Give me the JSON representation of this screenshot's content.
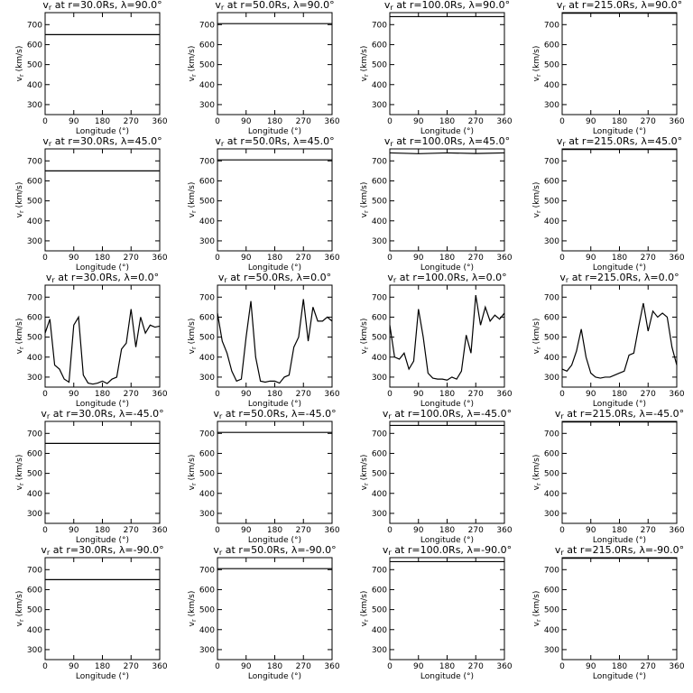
{
  "chart_data": [
    {
      "type": "line",
      "title": "vr at r=30.0Rs,  λ=90.0°",
      "xlabel": "Longitude (°)",
      "ylabel": "vr (km/s)",
      "x": [
        0,
        360
      ],
      "series": [
        {
          "color": "#000000",
          "values": [
            650,
            650
          ]
        }
      ],
      "xlim": [
        0,
        360
      ],
      "ylim": [
        250,
        760
      ],
      "xticks": [
        0,
        90,
        180,
        270,
        360
      ],
      "yticks": [
        300,
        400,
        500,
        600,
        700
      ]
    },
    {
      "type": "line",
      "title": "vr at r=50.0Rs,  λ=90.0°",
      "xlabel": "Longitude (°)",
      "ylabel": "vr (km/s)",
      "x": [
        0,
        360
      ],
      "series": [
        {
          "color": "#000000",
          "values": [
            705,
            705
          ]
        }
      ],
      "xlim": [
        0,
        360
      ],
      "ylim": [
        250,
        760
      ],
      "xticks": [
        0,
        90,
        180,
        270,
        360
      ],
      "yticks": [
        300,
        400,
        500,
        600,
        700
      ]
    },
    {
      "type": "line",
      "title": "vr at r=100.0Rs,  λ=90.0°",
      "xlabel": "Longitude (°)",
      "ylabel": "vr (km/s)",
      "x": [
        0,
        360
      ],
      "series": [
        {
          "color": "#000000",
          "values": [
            740,
            740
          ]
        }
      ],
      "xlim": [
        0,
        360
      ],
      "ylim": [
        250,
        760
      ],
      "xticks": [
        0,
        90,
        180,
        270,
        360
      ],
      "yticks": [
        300,
        400,
        500,
        600,
        700
      ]
    },
    {
      "type": "line",
      "title": "vr at r=215.0Rs,  λ=90.0°",
      "xlabel": "Longitude (°)",
      "ylabel": "vr (km/s)",
      "x": [
        0,
        360
      ],
      "series": [
        {
          "color": "#000000",
          "values": [
            757,
            757
          ]
        }
      ],
      "xlim": [
        0,
        360
      ],
      "ylim": [
        250,
        760
      ],
      "xticks": [
        0,
        90,
        180,
        270,
        360
      ],
      "yticks": [
        300,
        400,
        500,
        600,
        700
      ]
    },
    {
      "type": "line",
      "title": "vr at r=30.0Rs,  λ=45.0°",
      "xlabel": "Longitude (°)",
      "ylabel": "vr (km/s)",
      "x": [
        0,
        360
      ],
      "series": [
        {
          "color": "#000000",
          "values": [
            650,
            650
          ]
        }
      ],
      "xlim": [
        0,
        360
      ],
      "ylim": [
        250,
        760
      ],
      "xticks": [
        0,
        90,
        180,
        270,
        360
      ],
      "yticks": [
        300,
        400,
        500,
        600,
        700
      ]
    },
    {
      "type": "line",
      "title": "vr at r=50.0Rs,  λ=45.0°",
      "xlabel": "Longitude (°)",
      "ylabel": "vr (km/s)",
      "x": [
        0,
        360
      ],
      "series": [
        {
          "color": "#000000",
          "values": [
            705,
            705
          ]
        }
      ],
      "xlim": [
        0,
        360
      ],
      "ylim": [
        250,
        760
      ],
      "xticks": [
        0,
        90,
        180,
        270,
        360
      ],
      "yticks": [
        300,
        400,
        500,
        600,
        700
      ]
    },
    {
      "type": "line",
      "title": "vr at r=100.0Rs,  λ=45.0°",
      "xlabel": "Longitude (°)",
      "ylabel": "vr (km/s)",
      "x": [
        0,
        90,
        180,
        270,
        360
      ],
      "series": [
        {
          "color": "#000000",
          "values": [
            740,
            736,
            740,
            737,
            740
          ]
        }
      ],
      "xlim": [
        0,
        360
      ],
      "ylim": [
        250,
        760
      ],
      "xticks": [
        0,
        90,
        180,
        270,
        360
      ],
      "yticks": [
        300,
        400,
        500,
        600,
        700
      ]
    },
    {
      "type": "line",
      "title": "vr at r=215.0Rs,  λ=45.0°",
      "xlabel": "Longitude (°)",
      "ylabel": "vr (km/s)",
      "x": [
        0,
        360
      ],
      "series": [
        {
          "color": "#000000",
          "values": [
            757,
            757
          ]
        }
      ],
      "xlim": [
        0,
        360
      ],
      "ylim": [
        250,
        760
      ],
      "xticks": [
        0,
        90,
        180,
        270,
        360
      ],
      "yticks": [
        300,
        400,
        500,
        600,
        700
      ]
    },
    {
      "type": "line",
      "title": "vr at r=30.0Rs,  λ=0.0°",
      "xlabel": "Longitude (°)",
      "ylabel": "vr (km/s)",
      "x": [
        0,
        15,
        30,
        45,
        60,
        75,
        90,
        105,
        120,
        135,
        150,
        165,
        180,
        195,
        210,
        225,
        240,
        255,
        270,
        285,
        300,
        315,
        330,
        345,
        360
      ],
      "series": [
        {
          "color": "#000000",
          "values": [
            520,
            590,
            360,
            340,
            290,
            275,
            560,
            600,
            310,
            270,
            265,
            270,
            280,
            268,
            290,
            300,
            440,
            470,
            640,
            450,
            600,
            520,
            560,
            550,
            555
          ]
        }
      ],
      "xlim": [
        0,
        360
      ],
      "ylim": [
        250,
        760
      ],
      "xticks": [
        0,
        90,
        180,
        270,
        360
      ],
      "yticks": [
        300,
        400,
        500,
        600,
        700
      ]
    },
    {
      "type": "line",
      "title": "vr at r=50.0Rs,  λ=0.0°",
      "xlabel": "Longitude (°)",
      "ylabel": "vr (km/s)",
      "x": [
        0,
        15,
        30,
        45,
        60,
        75,
        90,
        105,
        120,
        135,
        150,
        165,
        180,
        195,
        210,
        225,
        240,
        255,
        270,
        285,
        300,
        315,
        330,
        345,
        360
      ],
      "series": [
        {
          "color": "#000000",
          "values": [
            620,
            480,
            420,
            330,
            280,
            290,
            500,
            680,
            400,
            280,
            275,
            280,
            280,
            270,
            300,
            310,
            450,
            500,
            690,
            480,
            650,
            580,
            580,
            600,
            580
          ]
        }
      ],
      "xlim": [
        0,
        360
      ],
      "ylim": [
        250,
        760
      ],
      "xticks": [
        0,
        90,
        180,
        270,
        360
      ],
      "yticks": [
        300,
        400,
        500,
        600,
        700
      ]
    },
    {
      "type": "line",
      "title": "vr at r=100.0Rs,  λ=0.0°",
      "xlabel": "Longitude (°)",
      "ylabel": "vr (km/s)",
      "x": [
        0,
        15,
        30,
        45,
        60,
        75,
        90,
        105,
        120,
        135,
        150,
        165,
        180,
        195,
        210,
        225,
        240,
        255,
        270,
        285,
        300,
        315,
        330,
        345,
        360
      ],
      "series": [
        {
          "color": "#000000",
          "values": [
            560,
            400,
            390,
            420,
            340,
            380,
            640,
            500,
            320,
            295,
            290,
            290,
            285,
            300,
            290,
            330,
            510,
            420,
            710,
            560,
            650,
            580,
            610,
            590,
            620
          ]
        }
      ],
      "xlim": [
        0,
        360
      ],
      "ylim": [
        250,
        760
      ],
      "xticks": [
        0,
        90,
        180,
        270,
        360
      ],
      "yticks": [
        300,
        400,
        500,
        600,
        700
      ]
    },
    {
      "type": "line",
      "title": "vr at r=215.0Rs,  λ=0.0°",
      "xlabel": "Longitude (°)",
      "ylabel": "vr (km/s)",
      "x": [
        0,
        15,
        30,
        45,
        60,
        75,
        90,
        105,
        120,
        135,
        150,
        165,
        180,
        195,
        210,
        225,
        240,
        255,
        270,
        285,
        300,
        315,
        330,
        345,
        360
      ],
      "series": [
        {
          "color": "#000000",
          "values": [
            340,
            330,
            360,
            430,
            540,
            400,
            320,
            300,
            295,
            300,
            300,
            310,
            320,
            330,
            410,
            420,
            550,
            670,
            530,
            630,
            600,
            620,
            600,
            450,
            360
          ]
        }
      ],
      "xlim": [
        0,
        360
      ],
      "ylim": [
        250,
        760
      ],
      "xticks": [
        0,
        90,
        180,
        270,
        360
      ],
      "yticks": [
        300,
        400,
        500,
        600,
        700
      ]
    },
    {
      "type": "line",
      "title": "vr at r=30.0Rs,  λ=-45.0°",
      "xlabel": "Longitude (°)",
      "ylabel": "vr (km/s)",
      "x": [
        0,
        360
      ],
      "series": [
        {
          "color": "#000000",
          "values": [
            650,
            650
          ]
        }
      ],
      "xlim": [
        0,
        360
      ],
      "ylim": [
        250,
        760
      ],
      "xticks": [
        0,
        90,
        180,
        270,
        360
      ],
      "yticks": [
        300,
        400,
        500,
        600,
        700
      ]
    },
    {
      "type": "line",
      "title": "vr at r=50.0Rs,  λ=-45.0°",
      "xlabel": "Longitude (°)",
      "ylabel": "vr (km/s)",
      "x": [
        0,
        360
      ],
      "series": [
        {
          "color": "#000000",
          "values": [
            705,
            705
          ]
        }
      ],
      "xlim": [
        0,
        360
      ],
      "ylim": [
        250,
        760
      ],
      "xticks": [
        0,
        90,
        180,
        270,
        360
      ],
      "yticks": [
        300,
        400,
        500,
        600,
        700
      ]
    },
    {
      "type": "line",
      "title": "vr at r=100.0Rs,  λ=-45.0°",
      "xlabel": "Longitude (°)",
      "ylabel": "vr (km/s)",
      "x": [
        0,
        360
      ],
      "series": [
        {
          "color": "#000000",
          "values": [
            740,
            740
          ]
        }
      ],
      "xlim": [
        0,
        360
      ],
      "ylim": [
        250,
        760
      ],
      "xticks": [
        0,
        90,
        180,
        270,
        360
      ],
      "yticks": [
        300,
        400,
        500,
        600,
        700
      ]
    },
    {
      "type": "line",
      "title": "vr at r=215.0Rs,  λ=-45.0°",
      "xlabel": "Longitude (°)",
      "ylabel": "vr (km/s)",
      "x": [
        0,
        360
      ],
      "series": [
        {
          "color": "#000000",
          "values": [
            757,
            757
          ]
        }
      ],
      "xlim": [
        0,
        360
      ],
      "ylim": [
        250,
        760
      ],
      "xticks": [
        0,
        90,
        180,
        270,
        360
      ],
      "yticks": [
        300,
        400,
        500,
        600,
        700
      ]
    },
    {
      "type": "line",
      "title": "vr at r=30.0Rs,  λ=-90.0°",
      "xlabel": "Longitude (°)",
      "ylabel": "vr (km/s)",
      "x": [
        0,
        360
      ],
      "series": [
        {
          "color": "#000000",
          "values": [
            650,
            650
          ]
        }
      ],
      "xlim": [
        0,
        360
      ],
      "ylim": [
        250,
        760
      ],
      "xticks": [
        0,
        90,
        180,
        270,
        360
      ],
      "yticks": [
        300,
        400,
        500,
        600,
        700
      ]
    },
    {
      "type": "line",
      "title": "vr at r=50.0Rs,  λ=-90.0°",
      "xlabel": "Longitude (°)",
      "ylabel": "vr (km/s)",
      "x": [
        0,
        360
      ],
      "series": [
        {
          "color": "#000000",
          "values": [
            705,
            705
          ]
        }
      ],
      "xlim": [
        0,
        360
      ],
      "ylim": [
        250,
        760
      ],
      "xticks": [
        0,
        90,
        180,
        270,
        360
      ],
      "yticks": [
        300,
        400,
        500,
        600,
        700
      ]
    },
    {
      "type": "line",
      "title": "vr at r=100.0Rs,  λ=-90.0°",
      "xlabel": "Longitude (°)",
      "ylabel": "vr (km/s)",
      "x": [
        0,
        360
      ],
      "series": [
        {
          "color": "#000000",
          "values": [
            740,
            740
          ]
        }
      ],
      "xlim": [
        0,
        360
      ],
      "ylim": [
        250,
        760
      ],
      "xticks": [
        0,
        90,
        180,
        270,
        360
      ],
      "yticks": [
        300,
        400,
        500,
        600,
        700
      ]
    },
    {
      "type": "line",
      "title": "vr at r=215.0Rs,  λ=-90.0°",
      "xlabel": "Longitude (°)",
      "ylabel": "vr (km/s)",
      "x": [
        0,
        360
      ],
      "series": [
        {
          "color": "#000000",
          "values": [
            757,
            757
          ]
        }
      ],
      "xlim": [
        0,
        360
      ],
      "ylim": [
        250,
        760
      ],
      "xticks": [
        0,
        90,
        180,
        270,
        360
      ],
      "yticks": [
        300,
        400,
        500,
        600,
        700
      ]
    }
  ]
}
